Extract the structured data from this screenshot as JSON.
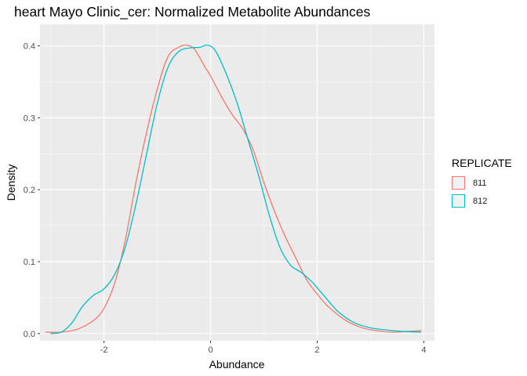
{
  "chart_data": {
    "type": "line",
    "title": "heart Mayo Clinic_cer: Normalized Metabolite Abundances",
    "xlabel": "Abundance",
    "ylabel": "Density",
    "xlim": [
      -3.2,
      4.2
    ],
    "ylim": [
      -0.01,
      0.43
    ],
    "x_ticks": [
      -2,
      0,
      2,
      4
    ],
    "y_ticks": [
      0.0,
      0.1,
      0.2,
      0.3,
      0.4
    ],
    "x_tick_labels": [
      "-2",
      "0",
      "2",
      "4"
    ],
    "y_tick_labels": [
      "0.0",
      "0.1",
      "0.2",
      "0.3",
      "0.4"
    ],
    "grid": true,
    "legend": {
      "title": "REPLICATE",
      "position": "right"
    },
    "series": [
      {
        "name": "811",
        "color": "#F8766D",
        "x": [
          -3.1,
          -2.8,
          -2.5,
          -2.2,
          -2.0,
          -1.8,
          -1.6,
          -1.4,
          -1.2,
          -1.0,
          -0.8,
          -0.6,
          -0.45,
          -0.3,
          -0.1,
          0.0,
          0.2,
          0.4,
          0.6,
          0.8,
          1.0,
          1.2,
          1.4,
          1.6,
          1.8,
          2.0,
          2.2,
          2.5,
          2.8,
          3.1,
          3.4,
          3.7,
          3.95
        ],
        "y": [
          0.002,
          0.002,
          0.006,
          0.018,
          0.035,
          0.07,
          0.13,
          0.21,
          0.28,
          0.34,
          0.385,
          0.398,
          0.401,
          0.395,
          0.37,
          0.358,
          0.33,
          0.305,
          0.285,
          0.255,
          0.21,
          0.17,
          0.135,
          0.105,
          0.075,
          0.055,
          0.038,
          0.02,
          0.009,
          0.004,
          0.002,
          0.003,
          0.004
        ]
      },
      {
        "name": "812",
        "color": "#00BFC4",
        "x": [
          -3.0,
          -2.8,
          -2.6,
          -2.4,
          -2.2,
          -2.0,
          -1.8,
          -1.6,
          -1.4,
          -1.2,
          -1.0,
          -0.8,
          -0.6,
          -0.4,
          -0.2,
          -0.05,
          0.1,
          0.3,
          0.5,
          0.7,
          0.9,
          1.1,
          1.3,
          1.5,
          1.7,
          1.9,
          2.1,
          2.4,
          2.7,
          3.0,
          3.3,
          3.6,
          3.95
        ],
        "y": [
          0.0,
          0.002,
          0.015,
          0.038,
          0.053,
          0.062,
          0.082,
          0.12,
          0.18,
          0.25,
          0.32,
          0.37,
          0.392,
          0.397,
          0.398,
          0.401,
          0.392,
          0.36,
          0.32,
          0.27,
          0.22,
          0.165,
          0.12,
          0.095,
          0.085,
          0.072,
          0.055,
          0.03,
          0.015,
          0.008,
          0.005,
          0.003,
          0.002
        ]
      }
    ]
  }
}
